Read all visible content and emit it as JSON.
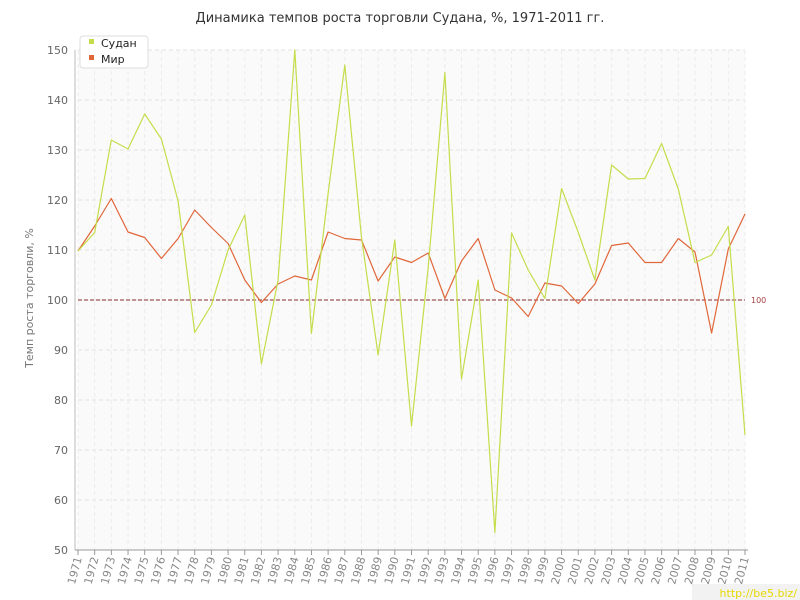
{
  "chart_data": {
    "type": "line",
    "title": "Динамика темпов роста торговли Судана, %, 1971-2011 гг.",
    "ylabel": "Темп роста торговли, %",
    "xlabel": "",
    "ylim": [
      50,
      150
    ],
    "yticks": [
      50,
      60,
      70,
      80,
      90,
      100,
      110,
      120,
      130,
      140,
      150
    ],
    "grid": true,
    "legend_position": "top-left",
    "x": [
      "1971",
      "1972",
      "1973",
      "1974",
      "1975",
      "1976",
      "1977",
      "1978",
      "1979",
      "1980",
      "1981",
      "1982",
      "1983",
      "1984",
      "1985",
      "1986",
      "1987",
      "1988",
      "1989",
      "1990",
      "1991",
      "1992",
      "1993",
      "1994",
      "1995",
      "1996",
      "1997",
      "1998",
      "1999",
      "2000",
      "2001",
      "2002",
      "2003",
      "2004",
      "2005",
      "2006",
      "2007",
      "2008",
      "2009",
      "2010",
      "2011"
    ],
    "series": [
      {
        "name": "Судан",
        "color": "#c5dd4b",
        "values": [
          109.8,
          113.5,
          132,
          130.2,
          137.2,
          132.2,
          119.8,
          93.5,
          99,
          110,
          117,
          87.2,
          104,
          150,
          93.3,
          121.3,
          147,
          112.5,
          89,
          112,
          74.8,
          106.5,
          145.5,
          84.2,
          104,
          53.5,
          113.4,
          106,
          100.3,
          122.3,
          113.5,
          104,
          127,
          124.2,
          124.3,
          131.3,
          122.2,
          107.5,
          109,
          114.7,
          73
        ]
      },
      {
        "name": "Мир",
        "color": "#e0673a",
        "values": [
          109.8,
          114.8,
          120.3,
          113.6,
          112.5,
          108.3,
          112.3,
          118,
          114.5,
          111.3,
          104,
          99.5,
          103.2,
          104.8,
          104,
          113.6,
          112.3,
          112,
          103.8,
          108.6,
          107.5,
          109.4,
          100.3,
          107.8,
          112.3,
          102,
          100.4,
          96.7,
          103.4,
          102.8,
          99.3,
          103.2,
          110.9,
          111.4,
          107.5,
          107.5,
          112.3,
          109.6,
          93.4,
          110.2,
          117.2
        ]
      }
    ],
    "reference_line": {
      "value": 100,
      "label": "100",
      "color": "#8b2a2a"
    }
  },
  "watermark": "http://be5.biz/"
}
